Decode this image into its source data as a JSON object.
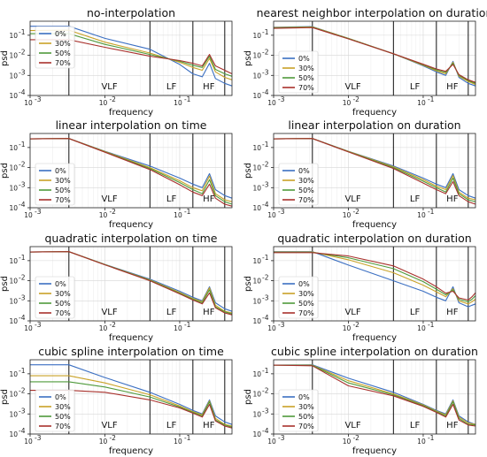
{
  "figure": {
    "xlabel": "frequency",
    "ylabel": "psd",
    "x_ticks": [
      "10",
      "10",
      "10"
    ],
    "x_tick_exps": [
      "-3",
      "-2",
      "-1"
    ],
    "y_ticks": [
      "10",
      "10",
      "10",
      "10"
    ],
    "y_tick_exps": [
      "-1",
      "-2",
      "-3",
      "-4"
    ],
    "bands": [
      "VLF",
      "LF",
      "HF"
    ],
    "legend": [
      "0%",
      "30%",
      "50%",
      "70%"
    ],
    "colors": [
      "#3b6fc2",
      "#c9a227",
      "#4f9a3b",
      "#a8312c"
    ]
  },
  "chart_data": [
    {
      "type": "line",
      "title": "no-interpolation",
      "xlabel": "frequency",
      "ylabel": "psd",
      "xscale": "log",
      "yscale": "log",
      "xlim": [
        0.001,
        0.5
      ],
      "ylim": [
        0.0001,
        0.5
      ],
      "band_lines": [
        0.0033,
        0.04,
        0.15,
        0.4
      ],
      "legend_position": "upper-left",
      "grid": true,
      "x": [
        0.001,
        0.0033,
        0.01,
        0.04,
        0.1,
        0.15,
        0.2,
        0.25,
        0.3,
        0.4,
        0.5
      ],
      "series": [
        {
          "name": "0%",
          "values": [
            0.28,
            0.28,
            0.07,
            0.02,
            0.0035,
            0.0012,
            0.00085,
            0.004,
            0.0007,
            0.0004,
            0.0003
          ]
        },
        {
          "name": "30%",
          "values": [
            0.17,
            0.18,
            0.045,
            0.013,
            0.0045,
            0.0025,
            0.0018,
            0.007,
            0.0015,
            0.0008,
            0.0006
          ]
        },
        {
          "name": "50%",
          "values": [
            0.12,
            0.12,
            0.035,
            0.011,
            0.005,
            0.0032,
            0.0025,
            0.009,
            0.002,
            0.0012,
            0.0009
          ]
        },
        {
          "name": "70%",
          "values": [
            0.06,
            0.06,
            0.025,
            0.009,
            0.0055,
            0.004,
            0.003,
            0.011,
            0.003,
            0.0018,
            0.0012
          ]
        }
      ]
    },
    {
      "type": "line",
      "title": "nearest neighbor interpolation on duration",
      "xlabel": "frequency",
      "ylabel": "psd",
      "xscale": "log",
      "yscale": "log",
      "xlim": [
        0.001,
        0.5
      ],
      "ylim": [
        0.0001,
        0.5
      ],
      "band_lines": [
        0.0033,
        0.04,
        0.15,
        0.4
      ],
      "legend_position": "lower-left",
      "grid": true,
      "x": [
        0.001,
        0.0033,
        0.01,
        0.04,
        0.1,
        0.15,
        0.2,
        0.25,
        0.3,
        0.4,
        0.5
      ],
      "series": [
        {
          "name": "0%",
          "values": [
            0.25,
            0.27,
            0.07,
            0.012,
            0.003,
            0.0015,
            0.001,
            0.005,
            0.0008,
            0.0004,
            0.0003
          ]
        },
        {
          "name": "30%",
          "values": [
            0.24,
            0.26,
            0.07,
            0.012,
            0.0032,
            0.0017,
            0.0012,
            0.0045,
            0.0009,
            0.0005,
            0.00035
          ]
        },
        {
          "name": "50%",
          "values": [
            0.23,
            0.25,
            0.068,
            0.012,
            0.0034,
            0.0019,
            0.0014,
            0.004,
            0.001,
            0.00055,
            0.0004
          ]
        },
        {
          "name": "70%",
          "values": [
            0.22,
            0.24,
            0.066,
            0.012,
            0.0036,
            0.0021,
            0.0016,
            0.0035,
            0.0011,
            0.0006,
            0.00045
          ]
        }
      ]
    },
    {
      "type": "line",
      "title": "linear interpolation on time",
      "xlabel": "frequency",
      "ylabel": "psd",
      "xscale": "log",
      "yscale": "log",
      "xlim": [
        0.001,
        0.5
      ],
      "ylim": [
        0.0001,
        0.5
      ],
      "band_lines": [
        0.0033,
        0.04,
        0.15,
        0.4
      ],
      "legend_position": "lower-left",
      "grid": true,
      "x": [
        0.001,
        0.0033,
        0.01,
        0.04,
        0.1,
        0.15,
        0.2,
        0.25,
        0.3,
        0.4,
        0.5
      ],
      "series": [
        {
          "name": "0%",
          "values": [
            0.27,
            0.28,
            0.065,
            0.012,
            0.003,
            0.0015,
            0.001,
            0.005,
            0.0008,
            0.0004,
            0.0003
          ]
        },
        {
          "name": "30%",
          "values": [
            0.27,
            0.28,
            0.063,
            0.01,
            0.0022,
            0.001,
            0.0007,
            0.0038,
            0.0005,
            0.00025,
            0.0002
          ]
        },
        {
          "name": "50%",
          "values": [
            0.27,
            0.28,
            0.06,
            0.009,
            0.0018,
            0.0008,
            0.0005,
            0.0025,
            0.0004,
            0.0002,
            0.00015
          ]
        },
        {
          "name": "70%",
          "values": [
            0.27,
            0.28,
            0.058,
            0.008,
            0.0014,
            0.0006,
            0.0004,
            0.0015,
            0.0003,
            0.00015,
            0.00012
          ]
        }
      ]
    },
    {
      "type": "line",
      "title": "linear interpolation on duration",
      "xlabel": "frequency",
      "ylabel": "psd",
      "xscale": "log",
      "yscale": "log",
      "xlim": [
        0.001,
        0.5
      ],
      "ylim": [
        0.0001,
        0.5
      ],
      "band_lines": [
        0.0033,
        0.04,
        0.15,
        0.4
      ],
      "legend_position": "lower-left",
      "grid": true,
      "x": [
        0.001,
        0.0033,
        0.01,
        0.04,
        0.1,
        0.15,
        0.2,
        0.25,
        0.3,
        0.4,
        0.5
      ],
      "series": [
        {
          "name": "0%",
          "values": [
            0.27,
            0.28,
            0.065,
            0.012,
            0.003,
            0.0015,
            0.001,
            0.005,
            0.0008,
            0.0004,
            0.0003
          ]
        },
        {
          "name": "30%",
          "values": [
            0.27,
            0.28,
            0.064,
            0.011,
            0.0025,
            0.0012,
            0.0008,
            0.004,
            0.0006,
            0.0003,
            0.00025
          ]
        },
        {
          "name": "50%",
          "values": [
            0.27,
            0.28,
            0.062,
            0.01,
            0.0021,
            0.001,
            0.0006,
            0.003,
            0.0005,
            0.00025,
            0.0002
          ]
        },
        {
          "name": "70%",
          "values": [
            0.27,
            0.28,
            0.06,
            0.009,
            0.0017,
            0.0008,
            0.0005,
            0.002,
            0.0004,
            0.0002,
            0.00015
          ]
        }
      ]
    },
    {
      "type": "line",
      "title": "quadratic interpolation on time",
      "xlabel": "frequency",
      "ylabel": "psd",
      "xscale": "log",
      "yscale": "log",
      "xlim": [
        0.001,
        0.5
      ],
      "ylim": [
        0.0001,
        0.5
      ],
      "band_lines": [
        0.0033,
        0.04,
        0.15,
        0.4
      ],
      "legend_position": "lower-left",
      "grid": true,
      "x": [
        0.001,
        0.0033,
        0.01,
        0.04,
        0.1,
        0.15,
        0.2,
        0.25,
        0.3,
        0.4,
        0.5
      ],
      "series": [
        {
          "name": "0%",
          "values": [
            0.27,
            0.28,
            0.065,
            0.012,
            0.003,
            0.0015,
            0.001,
            0.005,
            0.0008,
            0.0004,
            0.0003
          ]
        },
        {
          "name": "30%",
          "values": [
            0.27,
            0.28,
            0.064,
            0.011,
            0.0026,
            0.0013,
            0.0009,
            0.0045,
            0.0006,
            0.0003,
            0.00025
          ]
        },
        {
          "name": "50%",
          "values": [
            0.27,
            0.28,
            0.063,
            0.0105,
            0.0024,
            0.0012,
            0.0008,
            0.0035,
            0.0005,
            0.00028,
            0.00022
          ]
        },
        {
          "name": "70%",
          "values": [
            0.27,
            0.28,
            0.062,
            0.01,
            0.0022,
            0.0011,
            0.0007,
            0.0025,
            0.00045,
            0.00025,
            0.0002
          ]
        }
      ]
    },
    {
      "type": "line",
      "title": "quadratic interpolation on duration",
      "xlabel": "frequency",
      "ylabel": "psd",
      "xscale": "log",
      "yscale": "log",
      "xlim": [
        0.001,
        0.5
      ],
      "ylim": [
        0.0001,
        0.5
      ],
      "band_lines": [
        0.0033,
        0.04,
        0.15,
        0.4
      ],
      "legend_position": "lower-left",
      "grid": true,
      "x": [
        0.001,
        0.0033,
        0.01,
        0.04,
        0.1,
        0.15,
        0.2,
        0.25,
        0.3,
        0.4,
        0.45,
        0.5
      ],
      "series": [
        {
          "name": "0%",
          "values": [
            0.28,
            0.28,
            0.06,
            0.01,
            0.003,
            0.0015,
            0.001,
            0.005,
            0.0008,
            0.0005,
            0.0006,
            0.0007
          ]
        },
        {
          "name": "30%",
          "values": [
            0.27,
            0.27,
            0.11,
            0.025,
            0.006,
            0.0028,
            0.0016,
            0.004,
            0.001,
            0.0007,
            0.0009,
            0.0012
          ]
        },
        {
          "name": "50%",
          "values": [
            0.26,
            0.26,
            0.14,
            0.04,
            0.009,
            0.0038,
            0.002,
            0.0035,
            0.0012,
            0.0009,
            0.0012,
            0.0018
          ]
        },
        {
          "name": "70%",
          "values": [
            0.25,
            0.25,
            0.17,
            0.055,
            0.012,
            0.005,
            0.0024,
            0.003,
            0.0014,
            0.0011,
            0.0016,
            0.0025
          ]
        }
      ]
    },
    {
      "type": "line",
      "title": "cubic spline interpolation on time",
      "xlabel": "frequency",
      "ylabel": "psd",
      "xscale": "log",
      "yscale": "log",
      "xlim": [
        0.001,
        0.5
      ],
      "ylim": [
        0.0001,
        0.5
      ],
      "band_lines": [
        0.0033,
        0.04,
        0.15,
        0.4
      ],
      "legend_position": "lower-left",
      "grid": true,
      "x": [
        0.001,
        0.0033,
        0.01,
        0.04,
        0.1,
        0.15,
        0.2,
        0.25,
        0.3,
        0.4,
        0.5
      ],
      "series": [
        {
          "name": "0%",
          "values": [
            0.28,
            0.28,
            0.065,
            0.012,
            0.003,
            0.0015,
            0.001,
            0.005,
            0.0008,
            0.0004,
            0.0003
          ]
        },
        {
          "name": "30%",
          "values": [
            0.08,
            0.08,
            0.035,
            0.009,
            0.0025,
            0.0013,
            0.0009,
            0.0045,
            0.0006,
            0.0003,
            0.00025
          ]
        },
        {
          "name": "50%",
          "values": [
            0.04,
            0.04,
            0.022,
            0.007,
            0.0022,
            0.0012,
            0.0008,
            0.004,
            0.0005,
            0.00028,
            0.00022
          ]
        },
        {
          "name": "70%",
          "values": [
            0.015,
            0.015,
            0.012,
            0.005,
            0.002,
            0.0011,
            0.0007,
            0.003,
            0.00045,
            0.00025,
            0.0002
          ]
        }
      ]
    },
    {
      "type": "line",
      "title": "cubic spline interpolation on duration",
      "xlabel": "frequency",
      "ylabel": "psd",
      "xscale": "log",
      "yscale": "log",
      "xlim": [
        0.001,
        0.5
      ],
      "ylim": [
        0.0001,
        0.5
      ],
      "band_lines": [
        0.0033,
        0.04,
        0.15,
        0.4
      ],
      "legend_position": "lower-left",
      "grid": true,
      "x": [
        0.001,
        0.0033,
        0.01,
        0.04,
        0.1,
        0.15,
        0.2,
        0.25,
        0.3,
        0.4,
        0.5
      ],
      "series": [
        {
          "name": "0%",
          "values": [
            0.27,
            0.28,
            0.06,
            0.012,
            0.003,
            0.0015,
            0.001,
            0.005,
            0.0008,
            0.0004,
            0.0003
          ]
        },
        {
          "name": "30%",
          "values": [
            0.27,
            0.27,
            0.045,
            0.01,
            0.0028,
            0.0014,
            0.0009,
            0.0045,
            0.0007,
            0.00035,
            0.0003
          ]
        },
        {
          "name": "50%",
          "values": [
            0.27,
            0.26,
            0.035,
            0.009,
            0.0026,
            0.0013,
            0.0008,
            0.004,
            0.0006,
            0.0003,
            0.00028
          ]
        },
        {
          "name": "70%",
          "values": [
            0.27,
            0.25,
            0.025,
            0.008,
            0.0024,
            0.0012,
            0.0007,
            0.003,
            0.0005,
            0.00028,
            0.00025
          ]
        }
      ]
    }
  ]
}
